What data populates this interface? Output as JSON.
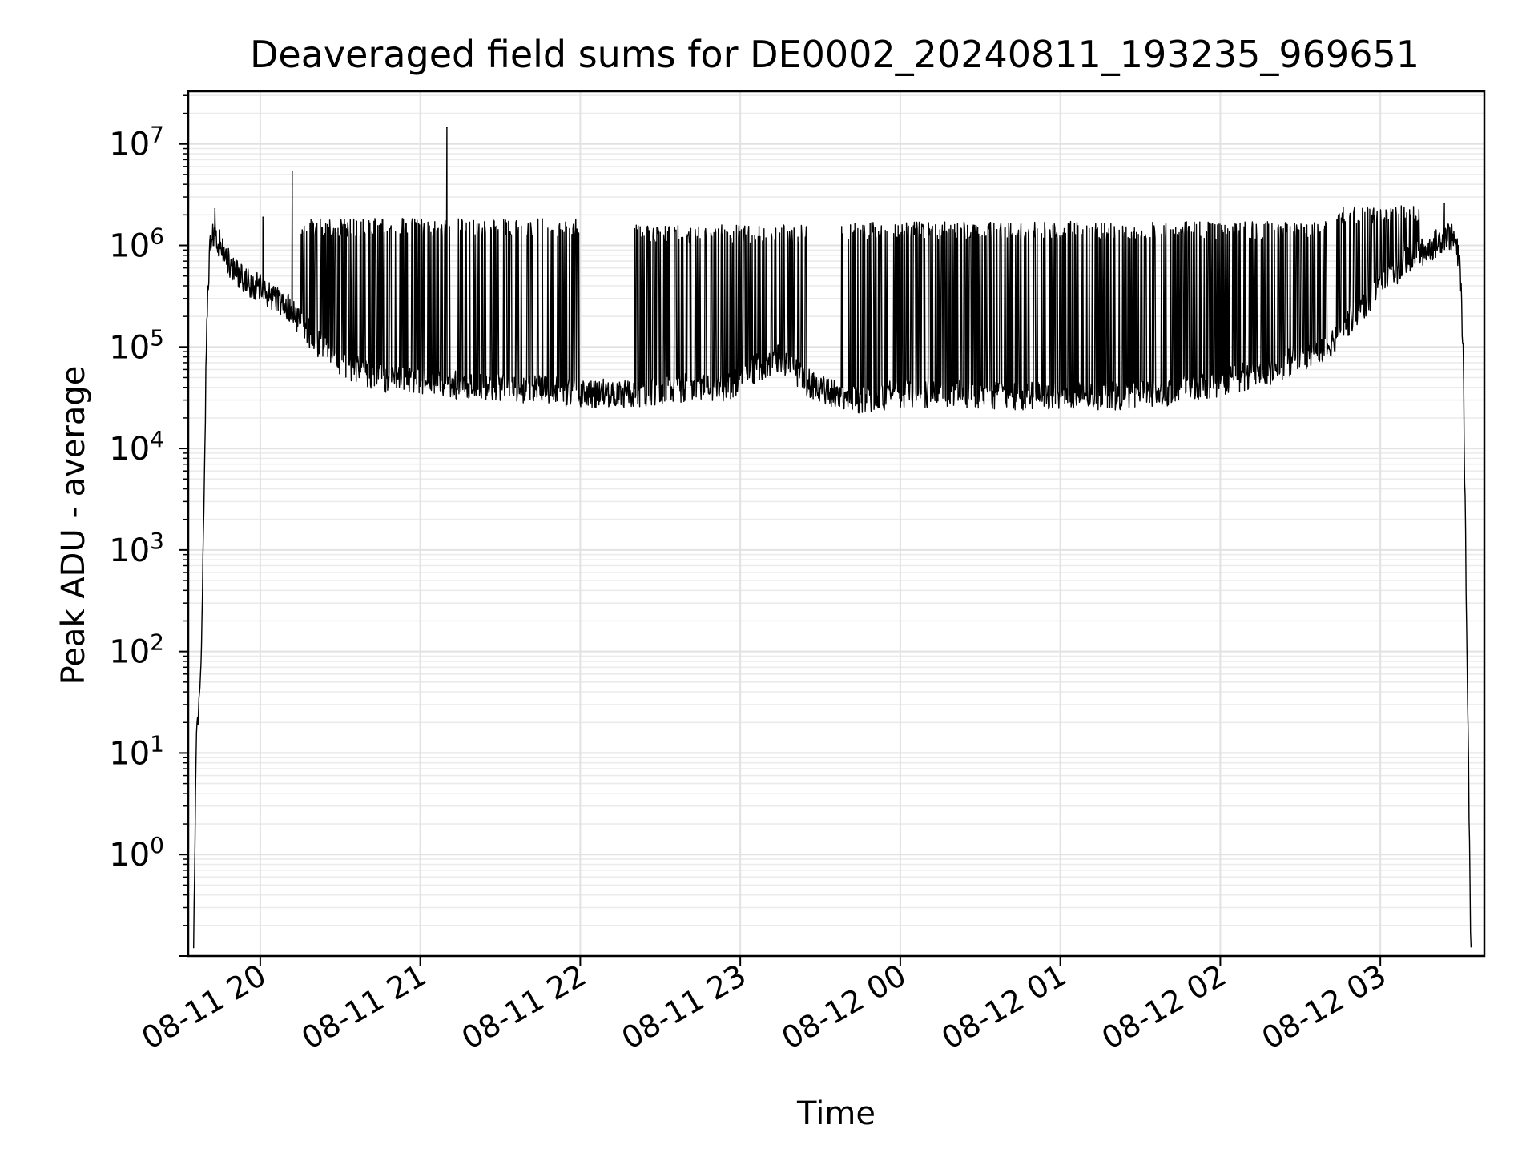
{
  "chart_data": {
    "type": "line",
    "title": "Deaveraged field sums for DE0002_20240811_193235_969651",
    "xlabel": "Time",
    "ylabel": "Peak ADU - average",
    "yscale": "log",
    "ylim": [
      0.1,
      33000000
    ],
    "xlim": [
      "2024-08-11 19:33",
      "2024-08-12 03:39"
    ],
    "grid": true,
    "legend": "none",
    "line_color": "#000000",
    "x_ticks": [
      "2024-08-11 20:00",
      "2024-08-11 21:00",
      "2024-08-11 22:00",
      "2024-08-11 23:00",
      "2024-08-12 00:00",
      "2024-08-12 01:00",
      "2024-08-12 02:00",
      "2024-08-12 03:00"
    ],
    "x_tick_labels": [
      "08-11 20",
      "08-11 21",
      "08-11 22",
      "08-11 23",
      "08-12 00",
      "08-12 01",
      "08-12 02",
      "08-12 03"
    ],
    "y_tick_values": [
      1,
      10,
      100,
      1000,
      10000,
      100000,
      1000000,
      10000000
    ],
    "y_tick_labels": [
      {
        "base": "10",
        "exp": "0"
      },
      {
        "base": "10",
        "exp": "1"
      },
      {
        "base": "10",
        "exp": "2"
      },
      {
        "base": "10",
        "exp": "3"
      },
      {
        "base": "10",
        "exp": "4"
      },
      {
        "base": "10",
        "exp": "5"
      },
      {
        "base": "10",
        "exp": "6"
      },
      {
        "base": "10",
        "exp": "7"
      }
    ],
    "series": [
      {
        "baseline_x": [
          "2024-08-11 19:35",
          "2024-08-11 19:36",
          "2024-08-11 19:37",
          "2024-08-11 19:38",
          "2024-08-11 19:39",
          "2024-08-11 19:40",
          "2024-08-11 19:41",
          "2024-08-11 19:42",
          "2024-08-11 19:43",
          "2024-08-11 19:45",
          "2024-08-11 19:48",
          "2024-08-11 19:52",
          "2024-08-11 19:56",
          "2024-08-11 20:00",
          "2024-08-11 20:10",
          "2024-08-11 20:20",
          "2024-08-11 20:30",
          "2024-08-11 20:45",
          "2024-08-11 21:00",
          "2024-08-11 21:15",
          "2024-08-11 21:30",
          "2024-08-11 21:45",
          "2024-08-11 22:00",
          "2024-08-11 22:20",
          "2024-08-11 22:40",
          "2024-08-11 22:55",
          "2024-08-11 23:05",
          "2024-08-11 23:15",
          "2024-08-11 23:25",
          "2024-08-11 23:35",
          "2024-08-11 23:45",
          "2024-08-12 00:00",
          "2024-08-12 00:20",
          "2024-08-12 00:40",
          "2024-08-12 01:00",
          "2024-08-12 01:20",
          "2024-08-12 01:40",
          "2024-08-12 02:00",
          "2024-08-12 02:20",
          "2024-08-12 02:40",
          "2024-08-12 02:50",
          "2024-08-12 03:00",
          "2024-08-12 03:10",
          "2024-08-12 03:20",
          "2024-08-12 03:25",
          "2024-08-12 03:28",
          "2024-08-12 03:30",
          "2024-08-12 03:31",
          "2024-08-12 03:32",
          "2024-08-12 03:33",
          "2024-08-12 03:34"
        ],
        "baseline_y": [
          0.1,
          15,
          30,
          100,
          5000,
          200000,
          800000,
          1300000,
          1300000,
          1000000,
          700000,
          500000,
          420000,
          380000,
          250000,
          120000,
          70000,
          50000,
          45000,
          42000,
          40000,
          38000,
          35000,
          35000,
          40000,
          40000,
          60000,
          80000,
          45000,
          35000,
          30000,
          35000,
          35000,
          33000,
          33000,
          33000,
          35000,
          45000,
          60000,
          100000,
          200000,
          400000,
          700000,
          1000000,
          1300000,
          1100000,
          600000,
          100000,
          1000,
          10,
          0.1
        ],
        "spikes": [
          {
            "x": "2024-08-11 19:43",
            "y": 2300000
          },
          {
            "x": "2024-08-11 20:01",
            "y": 1900000
          },
          {
            "x": "2024-08-11 20:12",
            "y": 5300000
          },
          {
            "x": "2024-08-11 21:10",
            "y": 14500000
          },
          {
            "x": "2024-08-12 03:24",
            "y": 2600000
          }
        ],
        "burst_segments": [
          {
            "x_start": "2024-08-11 20:15",
            "x_end": "2024-08-11 22:00",
            "high": 1500000
          },
          {
            "x_start": "2024-08-11 22:20",
            "x_end": "2024-08-11 23:25",
            "high": 1300000
          },
          {
            "x_start": "2024-08-11 23:38",
            "x_end": "2024-08-12 02:40",
            "high": 1400000
          },
          {
            "x_start": "2024-08-12 02:40",
            "x_end": "2024-08-12 03:15",
            "high": 2000000
          }
        ]
      }
    ]
  }
}
